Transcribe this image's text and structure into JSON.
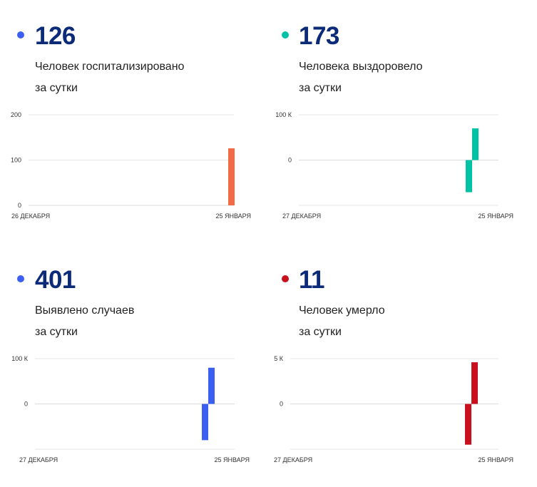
{
  "colors": {
    "number": "#0b2a78",
    "gridline": "#e6e6e6",
    "zeroline": "#dcdcdc"
  },
  "panels": [
    {
      "number": "126",
      "label_line1": "Человек госпитализировано",
      "label_line2": "за сутки",
      "dot_color": "#3b5ff0",
      "bar_color": "#f26b47"
    },
    {
      "number": "173",
      "label_line1": "Человека выздоровело",
      "label_line2": "за сутки",
      "dot_color": "#00c2a5",
      "bar_color": "#00c2a5"
    },
    {
      "number": "401",
      "label_line1": "Выявлено случаев",
      "label_line2": "за сутки",
      "dot_color": "#3b5ff0",
      "bar_color": "#3b5ff0"
    },
    {
      "number": "11",
      "label_line1": "Человек умерло",
      "label_line2": "за сутки",
      "dot_color": "#c8101e",
      "bar_color": "#c8101e"
    }
  ],
  "chart_data": [
    {
      "type": "bar",
      "title": "Человек госпитализировано за сутки",
      "x_ticks": [
        "26 ДЕКАБРЯ",
        "25 ЯНВАРЯ"
      ],
      "y_ticks": [
        {
          "value": 200,
          "label": "200"
        },
        {
          "value": 100,
          "label": "100"
        },
        {
          "value": 0,
          "label": "0"
        }
      ],
      "ylim": [
        0,
        200
      ],
      "values": [
        126
      ],
      "grid": true
    },
    {
      "type": "bar",
      "title": "Человека выздоровело за сутки",
      "x_ticks": [
        "27 ДЕКАБРЯ",
        "25 ЯНВАРЯ"
      ],
      "y_ticks": [
        {
          "value": 100000,
          "label": "100 К"
        },
        {
          "value": 0,
          "label": "0"
        }
      ],
      "ylim": [
        -100000,
        100000
      ],
      "values": [
        -71000,
        70000
      ],
      "grid": true
    },
    {
      "type": "bar",
      "title": "Выявлено случаев за сутки",
      "x_ticks": [
        "27 ДЕКАБРЯ",
        "25 ЯНВАРЯ"
      ],
      "y_ticks": [
        {
          "value": 100000,
          "label": "100 К"
        },
        {
          "value": 0,
          "label": "0"
        }
      ],
      "ylim": [
        -100000,
        100000
      ],
      "values": [
        -80000,
        80000
      ],
      "grid": true
    },
    {
      "type": "bar",
      "title": "Человек умерло за сутки",
      "x_ticks": [
        "27 ДЕКАБРЯ",
        "25 ЯНВАРЯ"
      ],
      "y_ticks": [
        {
          "value": 5000,
          "label": "5 К"
        },
        {
          "value": 0,
          "label": "0"
        }
      ],
      "ylim": [
        -5000,
        5000
      ],
      "values": [
        -4500,
        4600
      ],
      "grid": true
    }
  ]
}
